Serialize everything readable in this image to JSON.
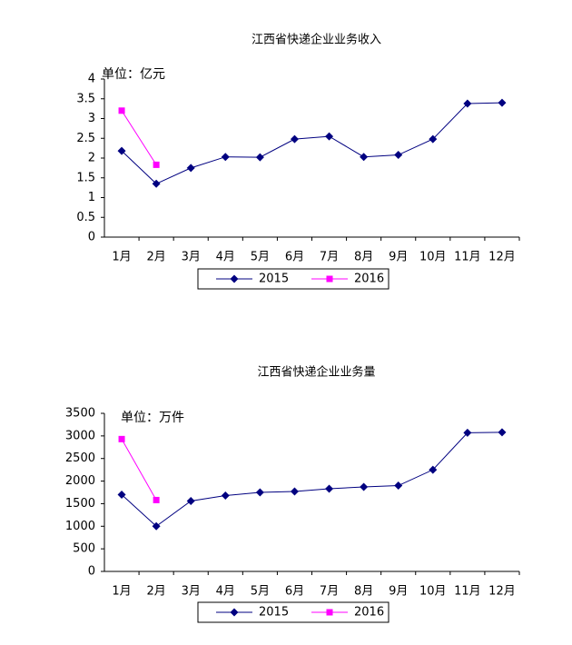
{
  "chart_data": [
    {
      "type": "line",
      "title": "江西省快递企业业务收入",
      "annotation": "单位：亿元",
      "categories": [
        "1月",
        "2月",
        "3月",
        "4月",
        "5月",
        "6月",
        "7月",
        "8月",
        "9月",
        "10月",
        "11月",
        "12月"
      ],
      "series": [
        {
          "name": "2015",
          "color": "#000080",
          "marker": "diamond",
          "values": [
            2.18,
            1.35,
            1.75,
            2.03,
            2.02,
            2.48,
            2.55,
            2.03,
            2.08,
            2.48,
            3.38,
            3.4
          ]
        },
        {
          "name": "2016",
          "color": "#ff00ff",
          "marker": "square",
          "values": [
            3.2,
            1.83,
            null,
            null,
            null,
            null,
            null,
            null,
            null,
            null,
            null,
            null
          ]
        }
      ],
      "ylim": [
        0,
        4
      ],
      "yticks": [
        0,
        0.5,
        1,
        1.5,
        2,
        2.5,
        3,
        3.5,
        4
      ],
      "grid": false,
      "legend": "bottom"
    },
    {
      "type": "line",
      "title": "江西省快递企业业务量",
      "annotation": "单位：万件",
      "categories": [
        "1月",
        "2月",
        "3月",
        "4月",
        "5月",
        "6月",
        "7月",
        "8月",
        "9月",
        "10月",
        "11月",
        "12月"
      ],
      "series": [
        {
          "name": "2015",
          "color": "#000080",
          "marker": "diamond",
          "values": [
            1700,
            1000,
            1560,
            1680,
            1750,
            1770,
            1830,
            1870,
            1900,
            2250,
            3070,
            3080
          ]
        },
        {
          "name": "2016",
          "color": "#ff00ff",
          "marker": "square",
          "values": [
            2930,
            1580,
            null,
            null,
            null,
            null,
            null,
            null,
            null,
            null,
            null,
            null
          ]
        }
      ],
      "ylim": [
        0,
        3500
      ],
      "yticks": [
        0,
        500,
        1000,
        1500,
        2000,
        2500,
        3000,
        3500
      ],
      "grid": false,
      "legend": "bottom"
    }
  ]
}
